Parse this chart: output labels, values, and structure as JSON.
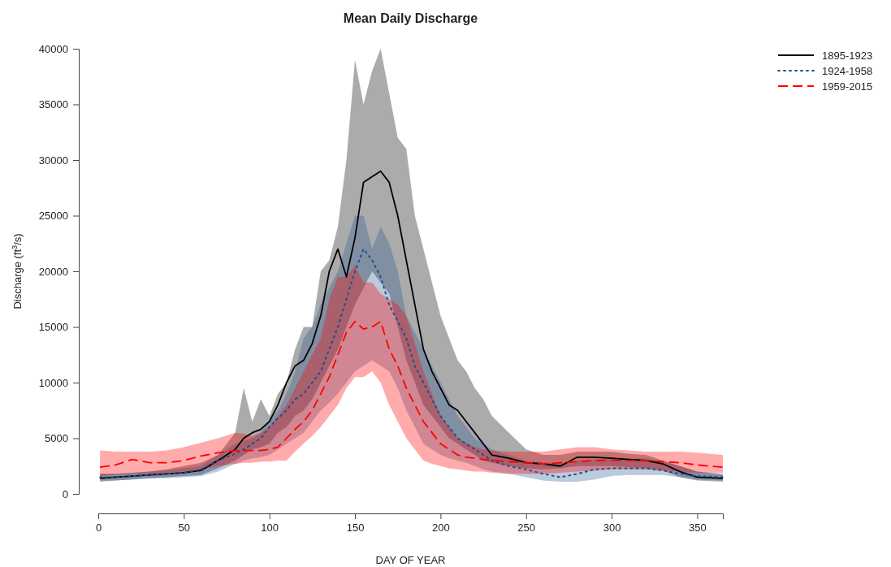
{
  "chart_data": {
    "type": "line",
    "title": "Mean Daily Discharge",
    "xlabel": "DAY OF YEAR",
    "ylabel": "Discharge (ft$^{3}$/s)",
    "x": [
      1,
      10,
      20,
      30,
      40,
      50,
      60,
      70,
      80,
      85,
      90,
      95,
      100,
      105,
      110,
      115,
      120,
      125,
      130,
      135,
      140,
      145,
      150,
      155,
      160,
      165,
      170,
      175,
      180,
      185,
      190,
      195,
      200,
      205,
      210,
      215,
      220,
      225,
      230,
      240,
      250,
      260,
      270,
      280,
      290,
      300,
      310,
      320,
      330,
      340,
      350,
      365
    ],
    "xlim": [
      0,
      365
    ],
    "xticks": [
      0,
      50,
      100,
      150,
      200,
      250,
      300,
      350
    ],
    "ylim": [
      0,
      40000
    ],
    "yticks": [
      0,
      5000,
      10000,
      15000,
      20000,
      25000,
      30000,
      35000,
      40000
    ],
    "legend": "top right",
    "grid": false,
    "marker": "none",
    "series": [
      {
        "name": "1895-1923",
        "color": "#000000",
        "line_style": "solid",
        "values": [
          1400,
          1500,
          1600,
          1700,
          1800,
          1900,
          2100,
          3000,
          4000,
          5000,
          5500,
          5800,
          6500,
          8000,
          10000,
          11500,
          12000,
          13500,
          16000,
          20000,
          22000,
          19500,
          23000,
          28000,
          28500,
          29000,
          28000,
          25000,
          21000,
          17000,
          13000,
          11000,
          9500,
          8000,
          7500,
          6500,
          5500,
          4500,
          3500,
          3200,
          2800,
          2700,
          2500,
          3300,
          3300,
          3200,
          3100,
          3000,
          2700,
          2000,
          1500,
          1400
        ],
        "lower": [
          1100,
          1200,
          1300,
          1400,
          1500,
          1600,
          1700,
          2300,
          3000,
          3500,
          4000,
          4200,
          4500,
          5500,
          6000,
          7000,
          7500,
          8500,
          10000,
          11500,
          13000,
          15000,
          17000,
          18500,
          20000,
          19000,
          18000,
          15000,
          12000,
          10000,
          8000,
          7000,
          6000,
          5000,
          4500,
          4000,
          3500,
          3000,
          2800,
          2500,
          2300,
          2200,
          2300,
          2500,
          2500,
          2500,
          2400,
          2300,
          2100,
          1500,
          1200,
          1100
        ],
        "upper": [
          1800,
          1800,
          1900,
          2000,
          2200,
          2500,
          2800,
          3500,
          5500,
          9500,
          6500,
          8500,
          7000,
          9000,
          10000,
          13000,
          15000,
          15000,
          20000,
          21000,
          24000,
          30000,
          39000,
          35000,
          38000,
          40000,
          36000,
          32000,
          31000,
          25000,
          22000,
          19000,
          16000,
          14000,
          12000,
          11000,
          9500,
          8500,
          7000,
          5500,
          4000,
          3500,
          3500,
          3800,
          3800,
          3800,
          3600,
          3500,
          3000,
          2500,
          2000,
          1800
        ]
      },
      {
        "name": "1924-1958",
        "color": "#1f4e8c",
        "line_style": "dotted",
        "values": [
          1500,
          1500,
          1600,
          1700,
          1800,
          1900,
          2200,
          3000,
          3600,
          4000,
          4500,
          5000,
          6000,
          6800,
          7500,
          8500,
          9000,
          10000,
          11000,
          13000,
          15000,
          17500,
          20000,
          22000,
          21000,
          19500,
          17000,
          15500,
          14000,
          11500,
          10000,
          8500,
          7000,
          6000,
          5000,
          4500,
          4000,
          3500,
          3000,
          2500,
          2200,
          1800,
          1500,
          1800,
          2200,
          2300,
          2300,
          2300,
          2100,
          1800,
          1600,
          1500
        ],
        "lower": [
          1200,
          1200,
          1300,
          1400,
          1400,
          1500,
          1600,
          2000,
          2700,
          3000,
          3200,
          3300,
          3500,
          4000,
          4500,
          5000,
          5500,
          6500,
          7500,
          8200,
          9000,
          10000,
          11000,
          11500,
          12000,
          11500,
          11000,
          9500,
          7500,
          6000,
          4500,
          4000,
          3500,
          3200,
          3000,
          2800,
          2500,
          2200,
          2000,
          1800,
          1500,
          1200,
          1100,
          1100,
          1300,
          1600,
          1700,
          1700,
          1700,
          1500,
          1300,
          1200
        ],
        "upper": [
          1800,
          1800,
          1900,
          2000,
          2100,
          2300,
          2500,
          3500,
          4500,
          4800,
          5000,
          5500,
          6500,
          7500,
          9000,
          11000,
          14000,
          15000,
          17000,
          18500,
          20000,
          22500,
          25000,
          25000,
          22000,
          24000,
          22500,
          20000,
          16000,
          14500,
          13000,
          11500,
          10000,
          8500,
          7000,
          6000,
          5000,
          4500,
          4000,
          3500,
          3000,
          2800,
          2800,
          3000,
          3100,
          3200,
          3200,
          3200,
          2900,
          2500,
          2000,
          1700
        ]
      },
      {
        "name": "1959-2015",
        "color": "#ff0000",
        "line_style": "dashed",
        "values": [
          2400,
          2600,
          3100,
          2800,
          2800,
          3000,
          3400,
          3700,
          3900,
          3900,
          3900,
          3900,
          4000,
          4200,
          5000,
          5800,
          6500,
          7500,
          9000,
          10500,
          12500,
          14500,
          15500,
          14800,
          15000,
          15500,
          13000,
          11500,
          9500,
          8000,
          6500,
          5500,
          4500,
          4000,
          3500,
          3300,
          3200,
          3100,
          3000,
          2900,
          2800,
          2700,
          2800,
          2900,
          3000,
          3000,
          3000,
          3000,
          2900,
          2800,
          2600,
          2400
        ],
        "lower": [
          1600,
          1700,
          1800,
          1800,
          1900,
          2000,
          2200,
          2500,
          2700,
          2800,
          2800,
          2900,
          2900,
          3000,
          3000,
          3800,
          4500,
          5200,
          6000,
          7000,
          8000,
          9500,
          10500,
          10500,
          11000,
          10000,
          8000,
          6500,
          5000,
          4000,
          3000,
          2700,
          2500,
          2300,
          2200,
          2100,
          2000,
          2000,
          1900,
          1800,
          1800,
          1800,
          1900,
          2000,
          2100,
          2200,
          2200,
          2200,
          2100,
          2000,
          1900,
          1900
        ],
        "upper": [
          3900,
          3800,
          3800,
          3800,
          3900,
          4200,
          4600,
          5000,
          5500,
          5400,
          5200,
          5500,
          6000,
          7000,
          8000,
          9500,
          11000,
          12500,
          14000,
          17500,
          19500,
          19500,
          20500,
          19000,
          19000,
          18000,
          17500,
          17000,
          16000,
          13500,
          11000,
          9000,
          7000,
          6000,
          5000,
          4600,
          4200,
          4000,
          3900,
          3800,
          3800,
          3800,
          4000,
          4200,
          4200,
          4000,
          3900,
          3800,
          3800,
          3800,
          3700,
          3500
        ]
      }
    ]
  }
}
